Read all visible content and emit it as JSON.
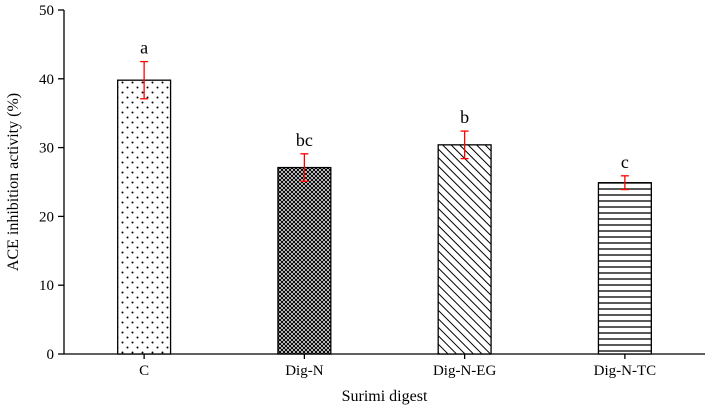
{
  "chart_data": {
    "type": "bar",
    "title": "",
    "xlabel": "Surimi digest",
    "ylabel": "ACE inhibition activity (%)",
    "ylim": [
      0,
      50
    ],
    "yticks": [
      0,
      10,
      20,
      30,
      40,
      50
    ],
    "grid": false,
    "categories": [
      "C",
      "Dig-N",
      "Dig-N-EG",
      "Dig-N-TC"
    ],
    "values": [
      39.8,
      27.1,
      30.4,
      24.9
    ],
    "errors": [
      2.7,
      2.0,
      2.0,
      1.0
    ],
    "significance_labels": [
      "a",
      "bc",
      "b",
      "c"
    ],
    "patterns": [
      "dots",
      "crosshatch",
      "diagonal",
      "horizontal-lines"
    ],
    "colors": {
      "bar_stroke": "#000000",
      "error_bar": "#ff0000",
      "axis": "#000000"
    }
  }
}
